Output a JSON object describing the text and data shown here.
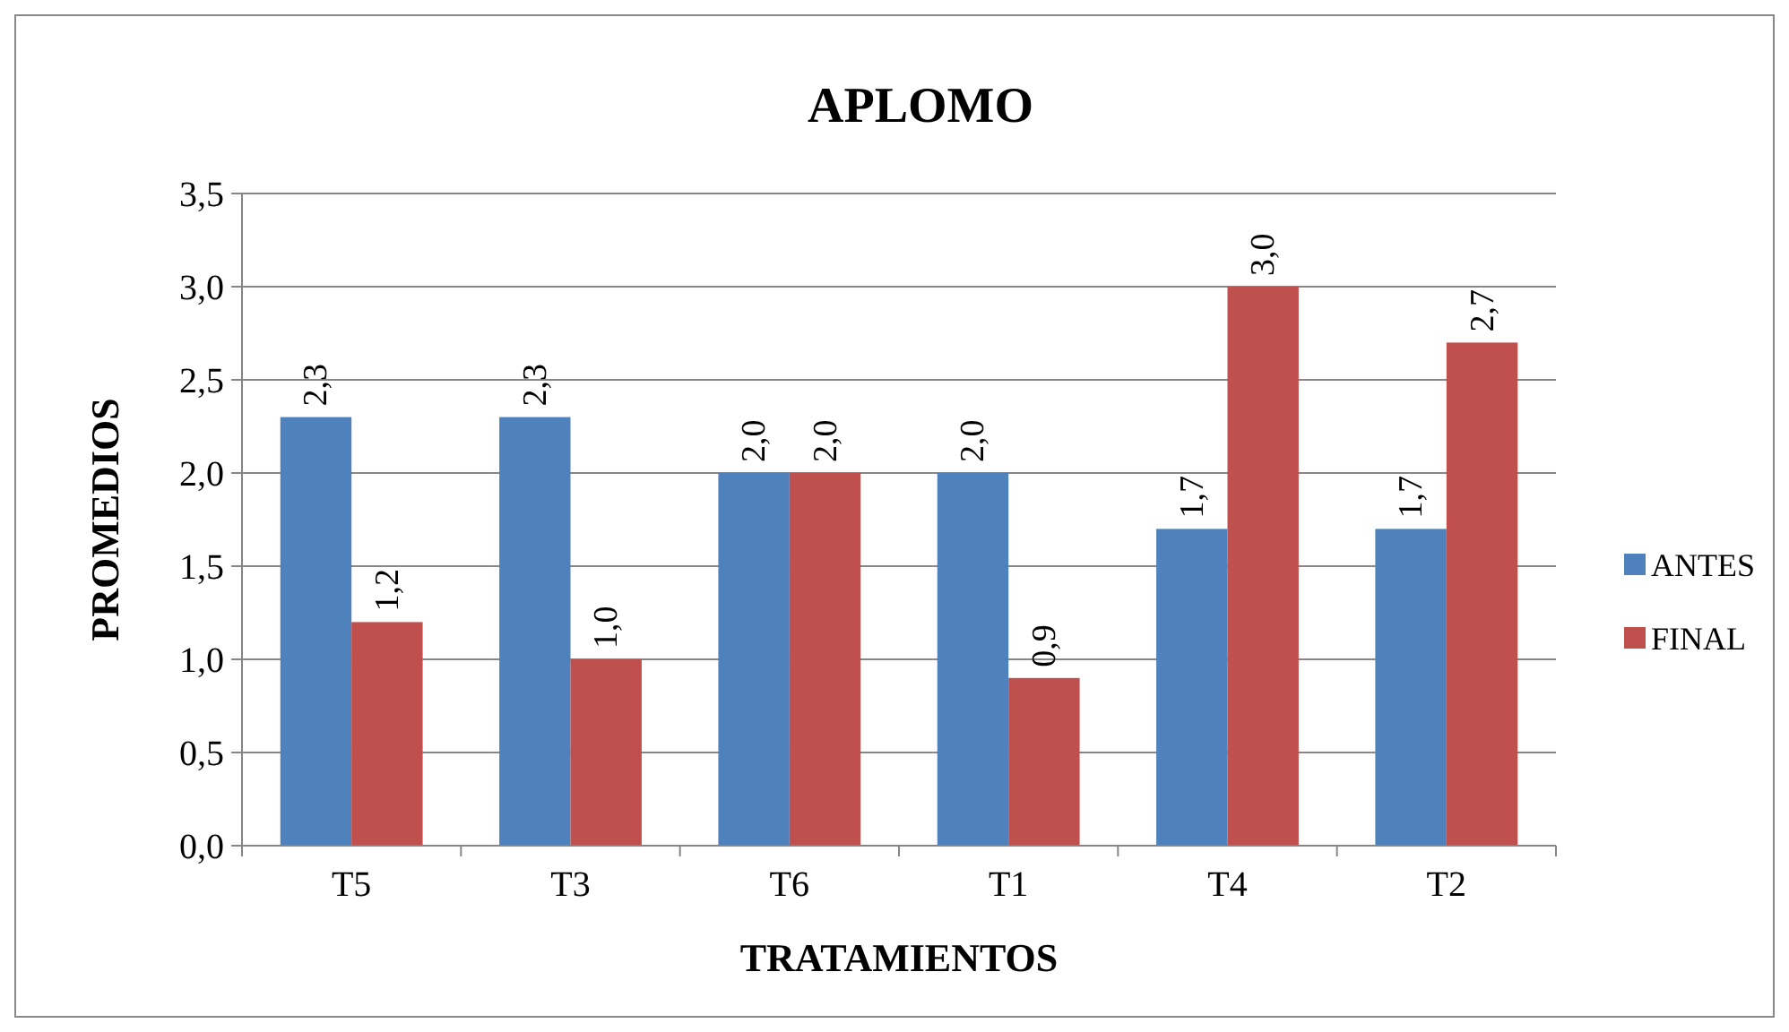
{
  "chart_data": {
    "type": "bar",
    "title": "APLOMO",
    "xlabel": "TRATAMIENTOS",
    "ylabel": "PROMEDIOS",
    "categories": [
      "T5",
      "T3",
      "T6",
      "T1",
      "T4",
      "T2"
    ],
    "series": [
      {
        "name": "ANTES",
        "color": "#4f81bd",
        "values": [
          2.3,
          2.3,
          2.0,
          2.0,
          1.7,
          1.7
        ],
        "value_labels": [
          "2,3",
          "2,3",
          "2,0",
          "2,0",
          "1,7",
          "1,7"
        ]
      },
      {
        "name": "FINAL",
        "color": "#c0504d",
        "values": [
          1.2,
          1.0,
          2.0,
          0.9,
          3.0,
          2.7
        ],
        "value_labels": [
          "1,2",
          "1,0",
          "2,0",
          "0,9",
          "3,0",
          "2,7"
        ]
      }
    ],
    "ylim": [
      0,
      3.5
    ],
    "yticks": [
      {
        "value": 0,
        "label": "0,0"
      },
      {
        "value": 0.5,
        "label": "0,5"
      },
      {
        "value": 1,
        "label": "1,0"
      },
      {
        "value": 1.5,
        "label": "1,5"
      },
      {
        "value": 2,
        "label": "2,0"
      },
      {
        "value": 2.5,
        "label": "2,5"
      },
      {
        "value": 3,
        "label": "3,0"
      },
      {
        "value": 3.5,
        "label": "3,5"
      }
    ],
    "grid": "y",
    "legend": "right"
  }
}
